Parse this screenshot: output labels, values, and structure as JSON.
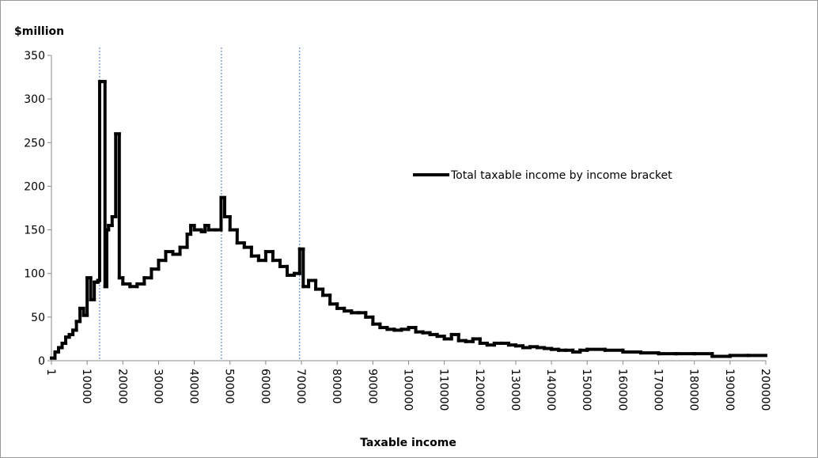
{
  "chart_data": {
    "type": "step",
    "y_label": "$million",
    "x_label": "Taxable income",
    "xlim": [
      1,
      200000
    ],
    "xticks": [
      1,
      10000,
      20000,
      30000,
      40000,
      50000,
      60000,
      70000,
      80000,
      90000,
      100000,
      110000,
      120000,
      130000,
      140000,
      150000,
      160000,
      170000,
      180000,
      190000,
      200000
    ],
    "ylim": [
      0,
      350
    ],
    "yticks": [
      0,
      50,
      100,
      150,
      200,
      250,
      300,
      350
    ],
    "vlines": [
      13500,
      47600,
      69500
    ],
    "vline_color": "#4472c4",
    "legend_position": "right",
    "series": [
      {
        "name": "Total taxable income by income bracket",
        "color": "#000000",
        "x": [
          1,
          1000,
          2000,
          3000,
          4000,
          5000,
          6000,
          7000,
          8000,
          9000,
          10000,
          11000,
          12000,
          13000,
          13500,
          14000,
          15000,
          15500,
          16000,
          17000,
          18000,
          19000,
          20000,
          22000,
          24000,
          26000,
          28000,
          30000,
          32000,
          34000,
          36000,
          38000,
          39000,
          40000,
          42000,
          43000,
          44000,
          46000,
          47500,
          48500,
          50000,
          52000,
          54000,
          56000,
          58000,
          60000,
          62000,
          64000,
          66000,
          68000,
          69500,
          70500,
          72000,
          74000,
          76000,
          78000,
          80000,
          82000,
          84000,
          86000,
          88000,
          90000,
          92000,
          94000,
          96000,
          98000,
          100000,
          102000,
          104000,
          106000,
          108000,
          110000,
          112000,
          114000,
          116000,
          118000,
          120000,
          122000,
          124000,
          126000,
          128000,
          130000,
          132000,
          134000,
          136000,
          138000,
          140000,
          142000,
          144000,
          146000,
          148000,
          150000,
          155000,
          160000,
          165000,
          170000,
          175000,
          180000,
          185000,
          190000,
          195000
        ],
        "values": [
          3,
          10,
          15,
          20,
          27,
          30,
          35,
          45,
          60,
          52,
          95,
          70,
          90,
          92,
          320,
          320,
          85,
          150,
          155,
          165,
          260,
          95,
          88,
          85,
          88,
          95,
          105,
          115,
          125,
          122,
          130,
          145,
          155,
          150,
          148,
          155,
          150,
          150,
          187,
          165,
          150,
          135,
          130,
          120,
          115,
          125,
          115,
          108,
          98,
          100,
          128,
          85,
          92,
          82,
          75,
          65,
          60,
          57,
          55,
          55,
          50,
          42,
          38,
          36,
          35,
          36,
          38,
          33,
          32,
          30,
          28,
          25,
          30,
          23,
          22,
          25,
          20,
          18,
          20,
          20,
          18,
          17,
          15,
          16,
          15,
          14,
          13,
          12,
          12,
          10,
          12,
          13,
          12,
          10,
          9,
          8,
          8,
          8,
          5,
          6,
          6
        ]
      }
    ]
  }
}
